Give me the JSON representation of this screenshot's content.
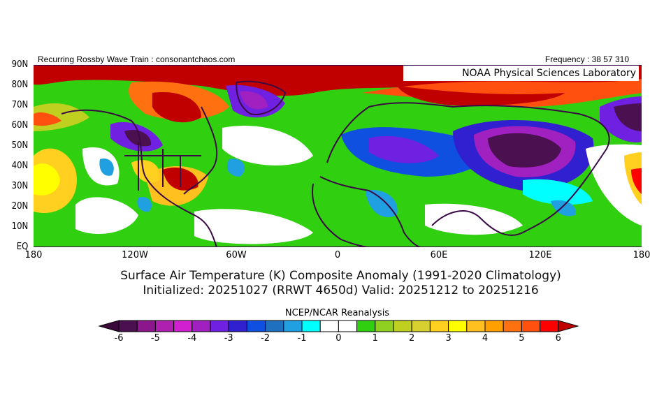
{
  "header": {
    "left_text": "Recurring Rossby Wave Train : consonantchaos.com",
    "right_text": "Frequency : 38 57 310",
    "credit": "NOAA Physical Sciences Laboratory"
  },
  "map": {
    "lat_labels": [
      "90N",
      "80N",
      "70N",
      "60N",
      "50N",
      "40N",
      "30N",
      "20N",
      "10N",
      "EQ"
    ],
    "lon_labels": [
      "180",
      "120W",
      "60W",
      "0",
      "60E",
      "120E",
      "180"
    ],
    "extent": {
      "lon": [
        -180,
        180
      ],
      "lat": [
        0,
        90
      ]
    }
  },
  "titles": {
    "line1": "Surface Air Temperature (K) Composite Anomaly (1991-2020 Climatology)",
    "line2": "Initialized: 20251027 (RRWT 4650d) Valid: 20251212 to 20251216"
  },
  "colorbar": {
    "title": "NCEP/NCAR Reanalysis",
    "tick_labels": [
      "-6",
      "-5",
      "-4",
      "-3",
      "-2",
      "-1",
      "0",
      "1",
      "2",
      "3",
      "4",
      "5",
      "6"
    ],
    "range": [
      -6,
      6
    ],
    "step": 0.5,
    "under_color": "#3a0a3a",
    "over_color": "#c00000",
    "colors": [
      "#4a1050",
      "#8c168c",
      "#b020b0",
      "#d020d0",
      "#a020c0",
      "#7020e0",
      "#3020d0",
      "#1050e0",
      "#2070c0",
      "#20a0e0",
      "#00ffff",
      "#ffffff",
      "#ffffff",
      "#30d010",
      "#90d020",
      "#c0d020",
      "#d8d030",
      "#ffd020",
      "#ffff00",
      "#ffc020",
      "#ffa000",
      "#ff7010",
      "#ff5010",
      "#ff0000"
    ]
  }
}
